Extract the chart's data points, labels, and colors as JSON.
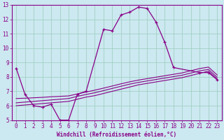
{
  "xlabel": "Windchill (Refroidissement éolien,°C)",
  "bg_color": "#cce8f0",
  "grid_color": "#99ccbb",
  "line_color": "#880088",
  "xlim": [
    -0.5,
    23.5
  ],
  "ylim": [
    5,
    13
  ],
  "xticks": [
    0,
    1,
    2,
    3,
    4,
    5,
    6,
    7,
    8,
    9,
    10,
    11,
    12,
    13,
    14,
    15,
    16,
    17,
    18,
    19,
    20,
    21,
    22,
    23
  ],
  "yticks": [
    5,
    6,
    7,
    8,
    9,
    10,
    11,
    12,
    13
  ],
  "curve1_x": [
    0,
    1,
    2,
    3,
    4,
    5,
    6,
    7,
    8,
    10,
    11,
    12,
    13,
    14,
    15,
    16,
    17,
    18,
    21,
    22,
    23
  ],
  "curve1_y": [
    8.6,
    6.8,
    6.0,
    5.9,
    6.1,
    5.0,
    5.0,
    6.8,
    7.0,
    11.3,
    11.2,
    12.3,
    12.5,
    12.85,
    12.75,
    11.8,
    10.4,
    8.65,
    8.3,
    8.3,
    7.8
  ],
  "curve2_x": [
    0,
    1,
    2,
    3,
    4,
    5,
    6,
    7,
    8,
    9,
    10,
    11,
    12,
    13,
    14,
    15,
    16,
    17,
    18,
    19,
    20,
    21,
    22,
    23
  ],
  "curve2_y": [
    6.0,
    6.05,
    6.1,
    6.15,
    6.2,
    6.25,
    6.3,
    6.45,
    6.6,
    6.7,
    6.85,
    7.0,
    7.15,
    7.3,
    7.45,
    7.55,
    7.65,
    7.75,
    7.85,
    7.95,
    8.1,
    8.25,
    8.4,
    7.85
  ],
  "curve3_x": [
    0,
    1,
    2,
    3,
    4,
    5,
    6,
    7,
    8,
    9,
    10,
    11,
    12,
    13,
    14,
    15,
    16,
    17,
    18,
    19,
    20,
    21,
    22,
    23
  ],
  "curve3_y": [
    6.2,
    6.25,
    6.3,
    6.35,
    6.4,
    6.45,
    6.5,
    6.65,
    6.78,
    6.9,
    7.05,
    7.2,
    7.35,
    7.5,
    7.62,
    7.72,
    7.82,
    7.92,
    8.02,
    8.12,
    8.27,
    8.42,
    8.52,
    7.97
  ],
  "curve4_x": [
    0,
    1,
    2,
    3,
    4,
    5,
    6,
    7,
    8,
    9,
    10,
    11,
    12,
    13,
    14,
    15,
    16,
    17,
    18,
    19,
    20,
    21,
    22,
    23
  ],
  "curve4_y": [
    6.5,
    6.52,
    6.55,
    6.58,
    6.62,
    6.65,
    6.68,
    6.82,
    6.95,
    7.08,
    7.22,
    7.37,
    7.52,
    7.66,
    7.78,
    7.88,
    7.98,
    8.08,
    8.18,
    8.28,
    8.43,
    8.58,
    8.68,
    8.13
  ]
}
